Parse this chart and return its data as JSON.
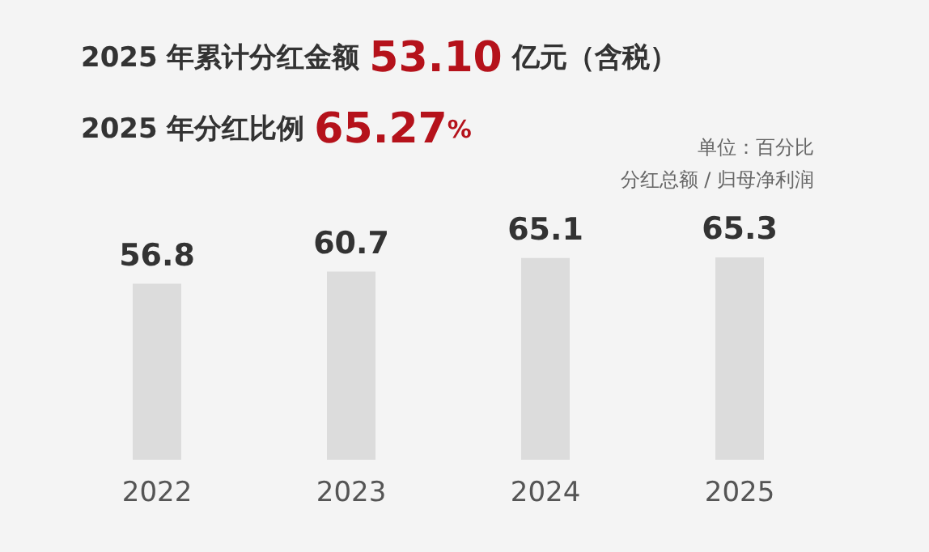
{
  "chart_data": {
    "type": "bar",
    "title": "2025 年累计分红金额 53.10 亿元（含税）",
    "subtitle": "2025 年分红比例 65.27%",
    "annotations": [
      "单位：百分比",
      "分红总额 / 归母净利润"
    ],
    "categories": [
      "2022",
      "2023",
      "2024",
      "2025"
    ],
    "values": [
      56.8,
      60.7,
      65.1,
      65.3
    ],
    "colors": [
      "#dcdcdc",
      "#dcdcdc",
      "#dcdcdc",
      "#dcdcdc"
    ],
    "data_labels": true
  }
}
